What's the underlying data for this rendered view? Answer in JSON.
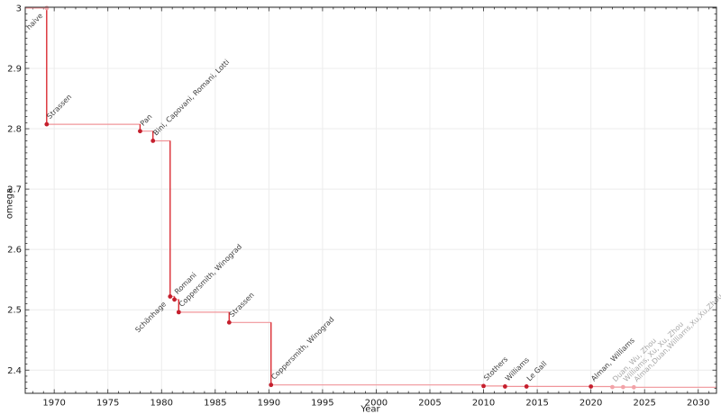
{
  "chart_data": {
    "type": "line",
    "subtype": "step-post-with-markers",
    "title": "",
    "xlabel": "Year",
    "ylabel": "omega",
    "xlim": [
      1967.3,
      2031.7
    ],
    "ylim": [
      2.3616,
      3.0014
    ],
    "grid": "major-only, very light, on",
    "legend": "none",
    "x_major_ticks": [
      {
        "v": 1970,
        "label": "1970"
      },
      {
        "v": 1975,
        "label": "1975"
      },
      {
        "v": 1980,
        "label": "1980"
      },
      {
        "v": 1985,
        "label": "1985"
      },
      {
        "v": 1990,
        "label": "1990"
      },
      {
        "v": 1995,
        "label": "1995"
      },
      {
        "v": 2000,
        "label": "2000"
      },
      {
        "v": 2005,
        "label": "2005"
      },
      {
        "v": 2010,
        "label": "2010"
      },
      {
        "v": 2015,
        "label": "2015"
      },
      {
        "v": 2020,
        "label": "2020"
      },
      {
        "v": 2025,
        "label": "2025"
      },
      {
        "v": 2030,
        "label": "2030"
      }
    ],
    "x_minor_step_years": 1,
    "y_major_ticks": [
      {
        "v": 3.0,
        "label": "3"
      },
      {
        "v": 2.9,
        "label": "2.9"
      },
      {
        "v": 2.8,
        "label": "2.8"
      },
      {
        "v": 2.7,
        "label": "2.7"
      },
      {
        "v": 2.6,
        "label": "2.6"
      },
      {
        "v": 2.5,
        "label": "2.5"
      },
      {
        "v": 2.4,
        "label": "2.4"
      }
    ],
    "y_minor_step": 0.01,
    "colors": {
      "line_soft": "#f0959a",
      "line_strong": "#d9262e",
      "marker": "#c51f2d",
      "marker_muted": "#f2a3a8",
      "label": "#3c3c3c",
      "label_muted": "#a8a8a8",
      "grid": "#ececec",
      "frame": "#2b2b2b",
      "tick_text": "#1a1a1a"
    },
    "points": [
      {
        "year": 1969.3,
        "omega": 3.0,
        "label": "naive",
        "marker_muted": true,
        "muted": false,
        "label_side": "below_left"
      },
      {
        "year": 1969.3,
        "omega": 2.8074,
        "label": "Strassen",
        "muted": false
      },
      {
        "year": 1978.0,
        "omega": 2.796,
        "label": "Pan",
        "muted": false
      },
      {
        "year": 1979.2,
        "omega": 2.78,
        "label": "Bini, Capovani, Romani, Lotti",
        "muted": false
      },
      {
        "year": 1980.8,
        "omega": 2.522,
        "label": "Schönhage",
        "muted": false,
        "label_side": "below_left"
      },
      {
        "year": 1981.2,
        "omega": 2.517,
        "label": "Romani",
        "muted": false
      },
      {
        "year": 1981.6,
        "omega": 2.496,
        "label": "Coppersmith, Winograd",
        "muted": false
      },
      {
        "year": 1986.3,
        "omega": 2.479,
        "label": "Strassen",
        "muted": false
      },
      {
        "year": 1990.2,
        "omega": 2.3755,
        "label": "Coppersmith, Winograd",
        "muted": false
      },
      {
        "year": 2010.0,
        "omega": 2.3737,
        "label": "Stothers",
        "muted": false
      },
      {
        "year": 2012.0,
        "omega": 2.3729,
        "label": "Williams",
        "muted": false
      },
      {
        "year": 2014.0,
        "omega": 2.3729,
        "label": "Le Gall",
        "muted": false
      },
      {
        "year": 2020.0,
        "omega": 2.3728,
        "label": "Alman, Williams",
        "muted": false
      },
      {
        "year": 2022.0,
        "omega": 2.3719,
        "label": "Duan, Wu, Zhou",
        "muted": true
      },
      {
        "year": 2023.0,
        "omega": 2.3719,
        "label": "Williams, Xu, Xu, Zhou",
        "muted": true
      },
      {
        "year": 2024.0,
        "omega": 2.3716,
        "label": "Alman,Duan,Williams,Xu,Xu,Zhou",
        "muted": true
      }
    ]
  }
}
